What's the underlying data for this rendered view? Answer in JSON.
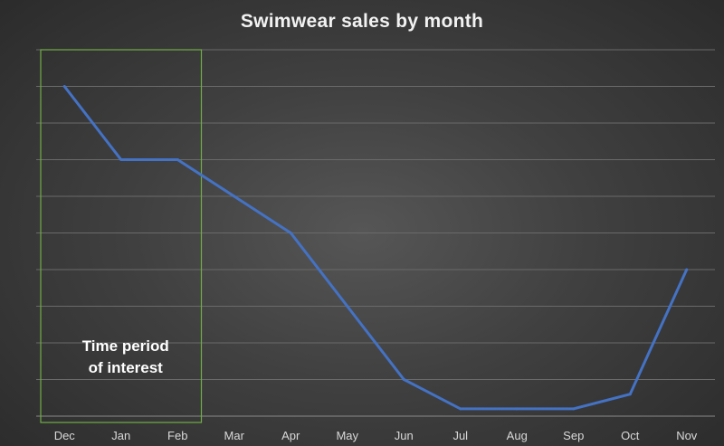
{
  "chart_data": {
    "type": "line",
    "title": "Swimwear sales by month",
    "xlabel": "",
    "ylabel": "",
    "categories": [
      "Dec",
      "Jan",
      "Feb",
      "Mar",
      "Apr",
      "May",
      "Jun",
      "Jul",
      "Aug",
      "Sep",
      "Oct",
      "Nov"
    ],
    "series": [
      {
        "values": [
          9,
          7,
          7,
          6,
          5,
          3,
          1,
          0.2,
          0.2,
          0.2,
          0.6,
          4
        ],
        "color": "#4472c4"
      }
    ],
    "ylim": [
      0,
      10
    ],
    "y_tick_labels_shown": false,
    "grid": true,
    "highlight": {
      "from_category": "Dec",
      "to_category": "Feb",
      "label_lines": [
        "Time period",
        "of interest"
      ],
      "color": "#70ad47"
    }
  }
}
